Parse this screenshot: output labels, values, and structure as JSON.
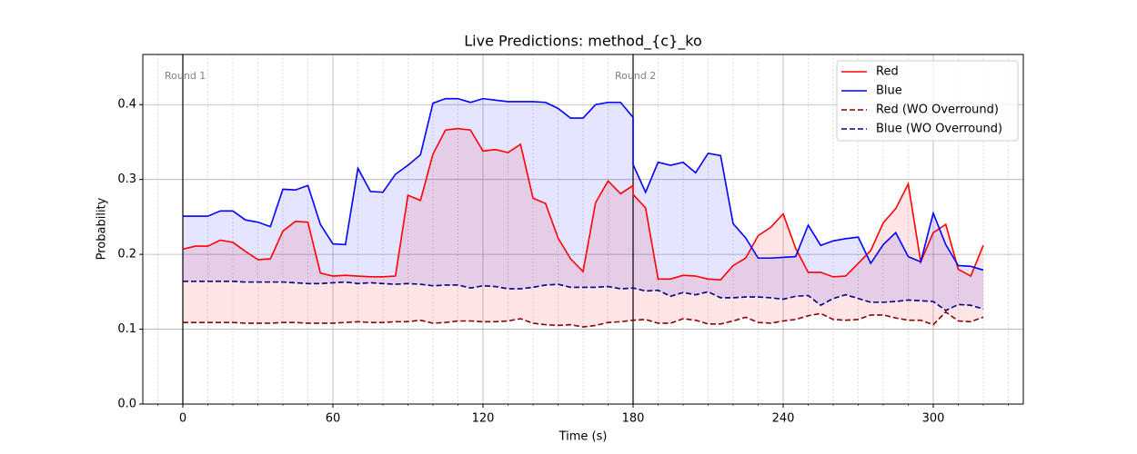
{
  "chart_data": {
    "type": "line",
    "title": "Live Predictions: method_{c}_ko",
    "xlabel": "Time (s)",
    "ylabel": "Probability",
    "x": [
      0,
      5,
      10,
      15,
      20,
      25,
      30,
      35,
      40,
      45,
      50,
      55,
      60,
      65,
      70,
      75,
      80,
      85,
      90,
      95,
      100,
      105,
      110,
      115,
      120,
      125,
      130,
      135,
      140,
      145,
      150,
      155,
      160,
      165,
      170,
      175,
      180,
      180,
      185,
      190,
      195,
      200,
      205,
      210,
      215,
      220,
      225,
      230,
      235,
      240,
      245,
      250,
      255,
      260,
      265,
      270,
      275,
      280,
      285,
      290,
      295,
      300,
      305,
      310,
      315,
      320
    ],
    "series": [
      {
        "name": "Red",
        "color": "#ff0000",
        "dashed": false,
        "values": [
          0.207,
          0.211,
          0.211,
          0.219,
          0.216,
          0.204,
          0.193,
          0.194,
          0.231,
          0.244,
          0.243,
          0.175,
          0.171,
          0.172,
          0.171,
          0.17,
          0.17,
          0.171,
          0.279,
          0.272,
          0.334,
          0.366,
          0.368,
          0.366,
          0.338,
          0.34,
          0.336,
          0.347,
          0.275,
          0.268,
          0.222,
          0.194,
          0.177,
          0.269,
          0.298,
          0.281,
          0.292,
          0.28,
          0.262,
          0.167,
          0.167,
          0.172,
          0.171,
          0.167,
          0.166,
          0.185,
          0.195,
          0.225,
          0.236,
          0.254,
          0.208,
          0.176,
          0.176,
          0.17,
          0.171,
          0.188,
          0.205,
          0.242,
          0.261,
          0.294,
          0.19,
          0.229,
          0.24,
          0.18,
          0.171,
          0.212
        ]
      },
      {
        "name": "Blue",
        "color": "#0000ff",
        "dashed": false,
        "values": [
          0.251,
          0.251,
          0.251,
          0.258,
          0.258,
          0.246,
          0.243,
          0.237,
          0.287,
          0.286,
          0.292,
          0.24,
          0.214,
          0.213,
          0.315,
          0.284,
          0.283,
          0.307,
          0.319,
          0.333,
          0.402,
          0.408,
          0.408,
          0.403,
          0.408,
          0.406,
          0.404,
          0.404,
          0.404,
          0.403,
          0.395,
          0.382,
          0.382,
          0.4,
          0.403,
          0.403,
          0.383,
          0.32,
          0.283,
          0.323,
          0.319,
          0.323,
          0.309,
          0.335,
          0.332,
          0.241,
          0.222,
          0.195,
          0.195,
          0.196,
          0.197,
          0.239,
          0.212,
          0.218,
          0.221,
          0.223,
          0.188,
          0.213,
          0.229,
          0.197,
          0.19,
          0.255,
          0.213,
          0.185,
          0.184,
          0.179
        ]
      },
      {
        "name": "Red (WO Overround)",
        "color": "#8b0000",
        "dashed": true,
        "values": [
          0.109,
          0.109,
          0.109,
          0.109,
          0.109,
          0.108,
          0.108,
          0.108,
          0.109,
          0.109,
          0.108,
          0.108,
          0.108,
          0.109,
          0.11,
          0.109,
          0.109,
          0.11,
          0.11,
          0.112,
          0.108,
          0.109,
          0.111,
          0.111,
          0.11,
          0.11,
          0.111,
          0.114,
          0.108,
          0.106,
          0.105,
          0.106,
          0.103,
          0.105,
          0.109,
          0.11,
          0.112,
          0.112,
          0.113,
          0.108,
          0.108,
          0.114,
          0.112,
          0.107,
          0.107,
          0.111,
          0.116,
          0.109,
          0.108,
          0.111,
          0.113,
          0.118,
          0.121,
          0.113,
          0.112,
          0.113,
          0.119,
          0.119,
          0.115,
          0.112,
          0.112,
          0.106,
          0.123,
          0.111,
          0.11,
          0.116
        ]
      },
      {
        "name": "Blue (WO Overround)",
        "color": "#00008b",
        "dashed": true,
        "values": [
          0.164,
          0.164,
          0.164,
          0.164,
          0.164,
          0.163,
          0.163,
          0.163,
          0.163,
          0.162,
          0.161,
          0.161,
          0.162,
          0.163,
          0.161,
          0.162,
          0.161,
          0.16,
          0.161,
          0.16,
          0.158,
          0.159,
          0.159,
          0.155,
          0.158,
          0.157,
          0.154,
          0.154,
          0.156,
          0.159,
          0.16,
          0.156,
          0.156,
          0.156,
          0.157,
          0.154,
          0.155,
          0.155,
          0.151,
          0.152,
          0.144,
          0.149,
          0.146,
          0.15,
          0.142,
          0.142,
          0.143,
          0.143,
          0.142,
          0.14,
          0.144,
          0.145,
          0.132,
          0.141,
          0.146,
          0.141,
          0.136,
          0.136,
          0.137,
          0.139,
          0.138,
          0.137,
          0.125,
          0.133,
          0.132,
          0.127
        ]
      }
    ],
    "fills": [
      {
        "between": [
          0,
          2
        ],
        "color": "#ff0000"
      },
      {
        "between": [
          1,
          3
        ],
        "color": "#0000ff"
      }
    ],
    "vlines": [
      {
        "x": 0,
        "label": "Round 1"
      },
      {
        "x": 180,
        "label": "Round 2"
      }
    ],
    "xlim": [
      -16,
      336
    ],
    "xticks": [
      0,
      60,
      120,
      180,
      240,
      300
    ],
    "xminorticks": [
      -10,
      10,
      20,
      30,
      40,
      50,
      70,
      80,
      90,
      100,
      110,
      130,
      140,
      150,
      160,
      170,
      190,
      200,
      210,
      220,
      230,
      250,
      260,
      270,
      280,
      290,
      310,
      320,
      330
    ],
    "ylim": [
      0,
      0.467
    ],
    "yticks": [
      0.0,
      0.1,
      0.2,
      0.3,
      0.4
    ],
    "grid": true,
    "legend": "upper right"
  }
}
